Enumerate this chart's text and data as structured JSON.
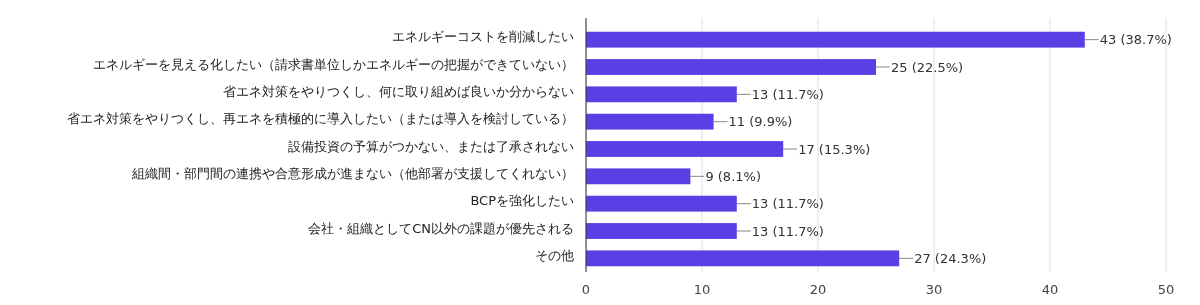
{
  "chart_data": {
    "type": "bar",
    "orientation": "horizontal",
    "categories": [
      "エネルギーコストを削減したい",
      "エネルギーを見える化したい（請求書単位しかエネルギーの把握ができていない）",
      "省エネ対策をやりつくし、何に取り組めば良いか分からない",
      "省エネ対策をやりつくし、再エネを積極的に導入したい（または導入を検討している）",
      "設備投資の予算がつかない、または了承されない",
      "組織間・部門間の連携や合意形成が進まない（他部署が支援してくれない）",
      "BCPを強化したい",
      "会社・組織としてCN以外の課題が優先される",
      "その他"
    ],
    "values": [
      43,
      25,
      13,
      11,
      17,
      9,
      13,
      13,
      27
    ],
    "value_labels": [
      "43 (38.7%)",
      "25 (22.5%)",
      "13 (11.7%)",
      "11 (9.9%)",
      "17 (15.3%)",
      "9 (8.1%)",
      "13 (11.7%)",
      "13 (11.7%)",
      "27 (24.3%)"
    ],
    "color": "#5c3fe4",
    "xlim": [
      0,
      50
    ],
    "xticks": [
      0,
      10,
      20,
      30,
      40,
      50
    ],
    "grid": "x"
  }
}
